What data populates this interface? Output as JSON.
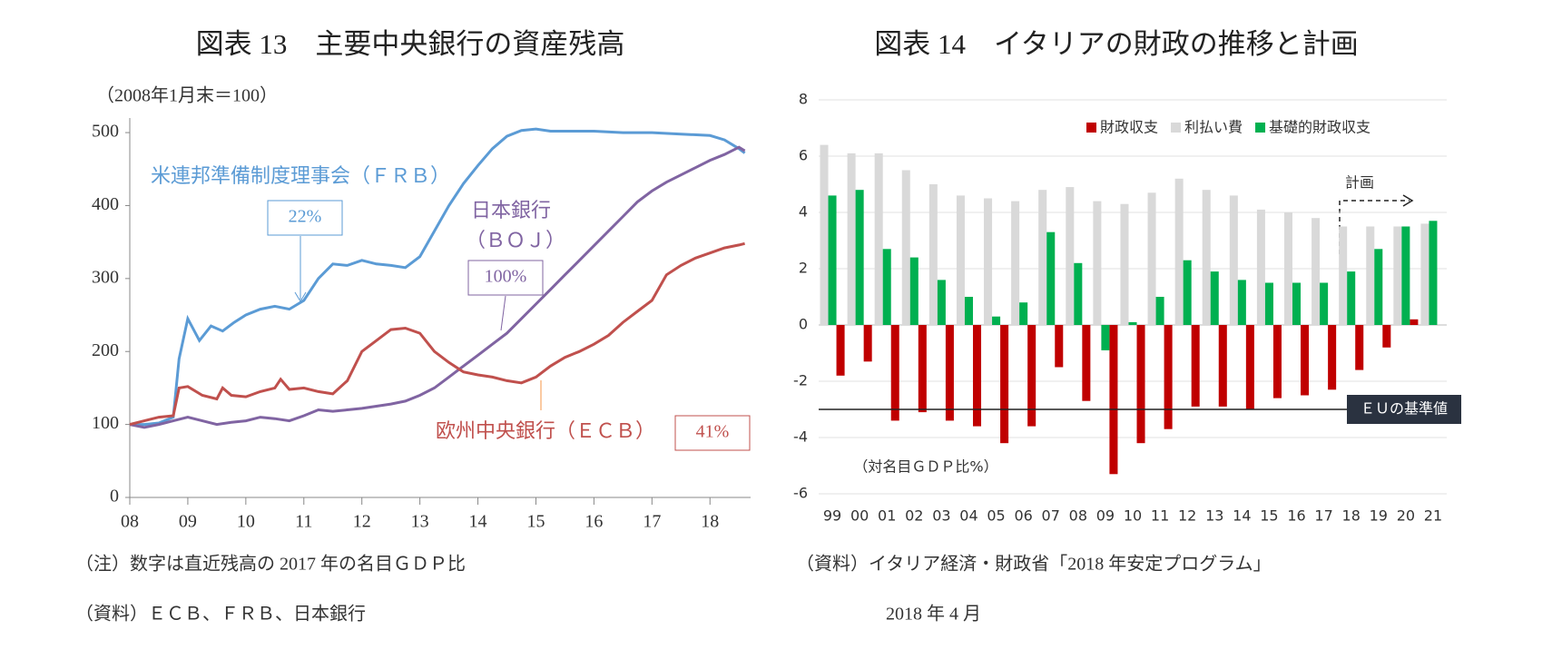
{
  "chart_data": [
    {
      "type": "line",
      "title": "図表 13　主要中央銀行の資産残高",
      "y_label": "（2008年1月末＝100）",
      "xlim": [
        2008,
        2018.7
      ],
      "xticks": [
        {
          "value": 2008,
          "label": "08"
        },
        {
          "value": 2009,
          "label": "09"
        },
        {
          "value": 2010,
          "label": "10"
        },
        {
          "value": 2011,
          "label": "11"
        },
        {
          "value": 2012,
          "label": "12"
        },
        {
          "value": 2013,
          "label": "13"
        },
        {
          "value": 2014,
          "label": "14"
        },
        {
          "value": 2015,
          "label": "15"
        },
        {
          "value": 2016,
          "label": "16"
        },
        {
          "value": 2017,
          "label": "17"
        },
        {
          "value": 2018,
          "label": "18"
        }
      ],
      "ylim": [
        0,
        520
      ],
      "yticks": [
        0,
        100,
        200,
        300,
        400,
        500
      ],
      "grid": false,
      "series": [
        {
          "name": "米連邦準備制度理事会（ＦＲＢ）",
          "color": "#5b9bd5",
          "x": [
            2008,
            2008.25,
            2008.5,
            2008.75,
            2008.85,
            2009,
            2009.2,
            2009.4,
            2009.6,
            2009.8,
            2010,
            2010.25,
            2010.5,
            2010.75,
            2011,
            2011.25,
            2011.5,
            2011.75,
            2012,
            2012.25,
            2012.5,
            2012.75,
            2013,
            2013.25,
            2013.5,
            2013.75,
            2014,
            2014.25,
            2014.5,
            2014.75,
            2015,
            2015.25,
            2015.5,
            2016,
            2016.5,
            2017,
            2017.5,
            2018,
            2018.25,
            2018.5,
            2018.6
          ],
          "values": [
            100,
            100,
            102,
            110,
            190,
            245,
            215,
            235,
            228,
            240,
            250,
            258,
            262,
            258,
            270,
            300,
            320,
            318,
            325,
            320,
            318,
            315,
            330,
            365,
            400,
            430,
            455,
            478,
            495,
            503,
            505,
            502,
            502,
            502,
            500,
            500,
            498,
            496,
            490,
            478,
            472
          ]
        },
        {
          "name": "日本銀行",
          "color": "#8064a2",
          "x": [
            2008,
            2008.25,
            2008.5,
            2008.75,
            2009,
            2009.25,
            2009.5,
            2009.75,
            2010,
            2010.25,
            2010.5,
            2010.75,
            2011,
            2011.25,
            2011.5,
            2011.75,
            2012,
            2012.25,
            2012.5,
            2012.75,
            2013,
            2013.25,
            2013.5,
            2013.75,
            2014,
            2014.25,
            2014.5,
            2014.75,
            2015,
            2015.25,
            2015.5,
            2015.75,
            2016,
            2016.25,
            2016.5,
            2016.75,
            2017,
            2017.25,
            2017.5,
            2017.75,
            2018,
            2018.25,
            2018.5,
            2018.6
          ],
          "values": [
            100,
            96,
            100,
            105,
            110,
            105,
            100,
            103,
            105,
            110,
            108,
            105,
            112,
            120,
            118,
            120,
            122,
            125,
            128,
            132,
            140,
            150,
            165,
            180,
            195,
            210,
            225,
            245,
            265,
            285,
            305,
            325,
            345,
            365,
            385,
            405,
            420,
            432,
            442,
            452,
            462,
            470,
            480,
            475
          ]
        },
        {
          "name": "欧州中央銀行（ＥＣＢ）",
          "color": "#c0504d",
          "x": [
            2008,
            2008.25,
            2008.5,
            2008.75,
            2008.85,
            2009,
            2009.25,
            2009.5,
            2009.6,
            2009.75,
            2010,
            2010.25,
            2010.5,
            2010.6,
            2010.75,
            2011,
            2011.25,
            2011.5,
            2011.75,
            2012,
            2012.25,
            2012.5,
            2012.75,
            2013,
            2013.25,
            2013.5,
            2013.75,
            2014,
            2014.25,
            2014.5,
            2014.75,
            2015,
            2015.25,
            2015.5,
            2015.75,
            2016,
            2016.25,
            2016.5,
            2016.75,
            2017,
            2017.25,
            2017.5,
            2017.75,
            2018,
            2018.25,
            2018.5,
            2018.6
          ],
          "values": [
            100,
            105,
            110,
            112,
            150,
            152,
            140,
            135,
            150,
            140,
            138,
            145,
            150,
            162,
            148,
            150,
            145,
            142,
            160,
            200,
            215,
            230,
            232,
            225,
            200,
            185,
            172,
            168,
            165,
            160,
            157,
            165,
            180,
            192,
            200,
            210,
            222,
            240,
            255,
            270,
            305,
            318,
            328,
            335,
            342,
            346,
            348
          ]
        }
      ],
      "annotations": [
        "22%",
        "（ＢＯＪ）",
        "100%",
        "41%"
      ],
      "notes": [
        "（注）数字は直近残高の 2017 年の名目ＧＤＰ比",
        "（資料）ＥＣＢ、ＦＲＢ、日本銀行"
      ]
    },
    {
      "type": "bar",
      "title": "図表 14　イタリアの財政の推移と計画",
      "categories": [
        "99",
        "00",
        "01",
        "02",
        "03",
        "04",
        "05",
        "06",
        "07",
        "08",
        "09",
        "10",
        "11",
        "12",
        "13",
        "14",
        "15",
        "16",
        "17",
        "18",
        "19",
        "20",
        "21"
      ],
      "ylim": [
        -6,
        8
      ],
      "yticks": [
        -6,
        -4,
        -2,
        0,
        2,
        4,
        6,
        8
      ],
      "grid": true,
      "legend": "top-right",
      "series": [
        {
          "name": "財政収支",
          "color": "#c00000",
          "values": [
            -1.8,
            -1.3,
            -3.4,
            -3.1,
            -3.4,
            -3.6,
            -4.2,
            -3.6,
            -1.5,
            -2.7,
            -5.3,
            -4.2,
            -3.7,
            -2.9,
            -2.9,
            -3.0,
            -2.6,
            -2.5,
            -2.3,
            -1.6,
            -0.8,
            0.2,
            0
          ]
        },
        {
          "name": "利払い費",
          "color": "#d9d9d9",
          "values": [
            6.4,
            6.1,
            6.1,
            5.5,
            5.0,
            4.6,
            4.5,
            4.4,
            4.8,
            4.9,
            4.4,
            4.3,
            4.7,
            5.2,
            4.8,
            4.6,
            4.1,
            4.0,
            3.8,
            3.5,
            3.5,
            3.5,
            3.6
          ]
        },
        {
          "name": "基礎的財政収支",
          "color": "#00b050",
          "values": [
            4.6,
            4.8,
            2.7,
            2.4,
            1.6,
            1.0,
            0.3,
            0.8,
            3.3,
            2.2,
            -0.9,
            0.1,
            1.0,
            2.3,
            1.9,
            1.6,
            1.5,
            1.5,
            1.5,
            1.9,
            2.7,
            3.5,
            3.7
          ]
        }
      ],
      "reference_line": {
        "label": "ＥＵの基準値",
        "value": -3
      },
      "annotations": [
        "計画",
        "（対名目ＧＤＰ比%）"
      ],
      "notes": [
        "（資料）イタリア経済・財政省「2018 年安定プログラム」",
        "2018 年 4 月"
      ]
    }
  ]
}
